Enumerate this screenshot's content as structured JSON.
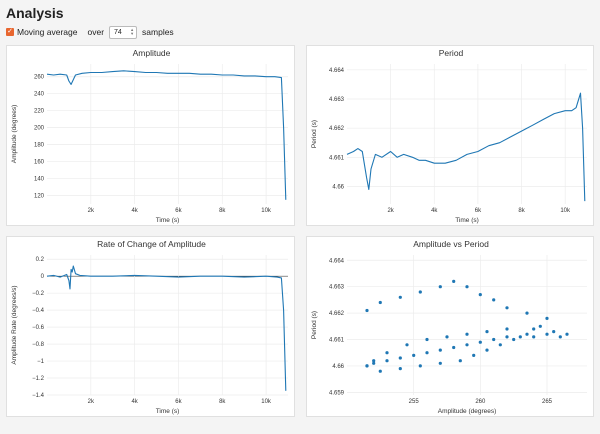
{
  "page": {
    "title": "Analysis"
  },
  "controls": {
    "moving_average_label": "Moving average",
    "over_label": "over",
    "samples_value": "74",
    "samples_label": "samples"
  },
  "series_color": "#1f77b4",
  "chart_data": [
    {
      "id": "amplitude",
      "type": "line",
      "title": "Amplitude",
      "xlabel": "Time (s)",
      "ylabel": "Amplitude (degrees)",
      "xlim": [
        0,
        11000
      ],
      "ylim": [
        110,
        275
      ],
      "xticks": [
        2000,
        4000,
        6000,
        8000,
        10000
      ],
      "xtick_labels": [
        "2k",
        "4k",
        "6k",
        "8k",
        "10k"
      ],
      "yticks": [
        120,
        140,
        160,
        180,
        200,
        220,
        240,
        260
      ],
      "ytick_labels": [
        "120",
        "140",
        "160",
        "180",
        "200",
        "220",
        "240",
        "260"
      ],
      "x": [
        0,
        300,
        600,
        900,
        1000,
        1100,
        1300,
        1600,
        2000,
        2500,
        3000,
        3500,
        4000,
        4500,
        5000,
        5500,
        6000,
        6500,
        7000,
        7500,
        8000,
        8500,
        9000,
        9500,
        10000,
        10400,
        10700,
        10800,
        10900
      ],
      "y": [
        263,
        262,
        263,
        262,
        255,
        251,
        262,
        264,
        265,
        265,
        266,
        267,
        266,
        265,
        265,
        264,
        264,
        264,
        263,
        263,
        262,
        262,
        261,
        261,
        260,
        260,
        259,
        200,
        115
      ]
    },
    {
      "id": "period",
      "type": "line",
      "title": "Period",
      "xlabel": "Time (s)",
      "ylabel": "Period (s)",
      "xlim": [
        0,
        11000
      ],
      "ylim": [
        4.6594,
        4.6642
      ],
      "xticks": [
        2000,
        4000,
        6000,
        8000,
        10000
      ],
      "xtick_labels": [
        "2k",
        "4k",
        "6k",
        "8k",
        "10k"
      ],
      "yticks": [
        4.66,
        4.661,
        4.662,
        4.663,
        4.664
      ],
      "ytick_labels": [
        "4.66",
        "4.661",
        "4.662",
        "4.663",
        "4.664"
      ],
      "x": [
        0,
        300,
        500,
        700,
        900,
        1000,
        1100,
        1300,
        1600,
        2000,
        2300,
        2600,
        3000,
        3300,
        3600,
        4000,
        4500,
        5000,
        5500,
        6000,
        6500,
        7000,
        7500,
        8000,
        8500,
        9000,
        9500,
        10000,
        10300,
        10500,
        10700,
        10800,
        10900
      ],
      "y": [
        4.6611,
        4.6612,
        4.6613,
        4.6612,
        4.6603,
        4.6599,
        4.6606,
        4.6611,
        4.661,
        4.6612,
        4.661,
        4.6611,
        4.661,
        4.6609,
        4.6609,
        4.6608,
        4.6608,
        4.6609,
        4.6611,
        4.6612,
        4.6614,
        4.6615,
        4.6617,
        4.6619,
        4.6621,
        4.6623,
        4.6625,
        4.6626,
        4.6626,
        4.6627,
        4.6632,
        4.662,
        4.6595
      ]
    },
    {
      "id": "rate",
      "type": "line",
      "title": "Rate of Change of Amplitude",
      "xlabel": "Time (s)",
      "ylabel": "Amplitude Rate (degrees/s)",
      "xlim": [
        0,
        11000
      ],
      "ylim": [
        -1.4,
        0.25
      ],
      "xticks": [
        2000,
        4000,
        6000,
        8000,
        10000
      ],
      "xtick_labels": [
        "2k",
        "4k",
        "6k",
        "8k",
        "10k"
      ],
      "yticks": [
        0.2,
        0,
        -0.2,
        -0.4,
        -0.6,
        -0.8,
        -1,
        -1.2,
        -1.4
      ],
      "ytick_labels": [
        "0.2",
        "0",
        "−0.2",
        "−0.4",
        "−0.6",
        "−0.8",
        "−1",
        "−1.2",
        "−1.4"
      ],
      "x": [
        0,
        300,
        600,
        900,
        1000,
        1050,
        1100,
        1150,
        1200,
        1300,
        1500,
        2000,
        3000,
        4000,
        5000,
        6000,
        7000,
        8000,
        9000,
        10000,
        10500,
        10700,
        10800,
        10900
      ],
      "y": [
        0.0,
        0.01,
        -0.01,
        0.02,
        -0.05,
        -0.15,
        0.08,
        0.05,
        0.12,
        0.03,
        0.01,
        0.0,
        0.0,
        0.01,
        0.0,
        -0.01,
        0.0,
        0.0,
        -0.01,
        0.0,
        -0.01,
        -0.02,
        -0.4,
        -1.35
      ]
    },
    {
      "id": "amp-vs-period",
      "type": "scatter",
      "title": "Amplitude vs Period",
      "xlabel": "Amplitude (degrees)",
      "ylabel": "Period (s)",
      "xlim": [
        250,
        268
      ],
      "ylim": [
        4.6589,
        4.6642
      ],
      "xticks": [
        255,
        260,
        265
      ],
      "xtick_labels": [
        "255",
        "260",
        "265"
      ],
      "yticks": [
        4.659,
        4.66,
        4.661,
        4.662,
        4.663,
        4.664
      ],
      "ytick_labels": [
        "4.659",
        "4.66",
        "4.661",
        "4.662",
        "4.663",
        "4.664"
      ],
      "x": [
        251.5,
        252.0,
        253.0,
        254.0,
        255.0,
        256.0,
        257.0,
        258.0,
        259.0,
        260.0,
        261.0,
        262.0,
        263.0,
        264.0,
        265.0,
        266.0,
        266.5,
        265.5,
        264.0,
        262.0,
        260.5,
        259.0,
        257.5,
        256.0,
        254.5,
        253.0,
        252.0,
        251.5,
        252.5,
        254.0,
        255.5,
        257.0,
        258.5,
        259.5,
        260.5,
        261.5,
        262.5,
        263.5,
        264.5,
        265.0,
        263.5,
        262.0,
        261.0,
        260.0,
        259.0,
        258.0,
        257.0,
        255.5,
        254.0,
        252.5,
        251.5
      ],
      "y": [
        4.66,
        4.6601,
        4.6602,
        4.6603,
        4.6604,
        4.6605,
        4.6606,
        4.6607,
        4.6608,
        4.6609,
        4.661,
        4.6611,
        4.6611,
        4.6611,
        4.6612,
        4.6611,
        4.6612,
        4.6613,
        4.6614,
        4.6614,
        4.6613,
        4.6612,
        4.6611,
        4.661,
        4.6608,
        4.6605,
        4.6602,
        4.66,
        4.6598,
        4.6599,
        4.66,
        4.6601,
        4.6602,
        4.6604,
        4.6606,
        4.6608,
        4.661,
        4.6612,
        4.6615,
        4.6618,
        4.662,
        4.6622,
        4.6625,
        4.6627,
        4.663,
        4.6632,
        4.663,
        4.6628,
        4.6626,
        4.6624,
        4.6621
      ]
    }
  ]
}
